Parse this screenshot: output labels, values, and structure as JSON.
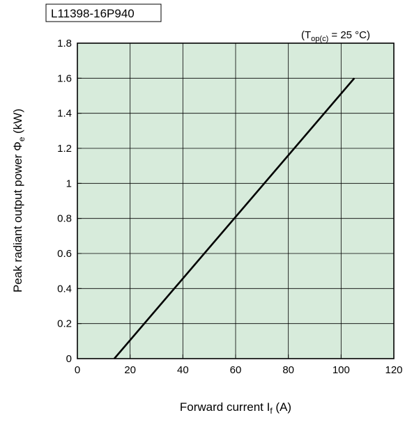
{
  "model_label": "L11398-16P940",
  "condition": {
    "prefix": "(T",
    "subscript": "op(c)",
    "suffix": " = 25 °C)"
  },
  "chart_data": {
    "type": "line",
    "xlabel": {
      "main": "Forward current I",
      "sub": "f",
      "unit": " (A)"
    },
    "ylabel": {
      "main": "Peak radiant output power Φ",
      "sub": "e",
      "unit": " (kW)"
    },
    "xlim": [
      0,
      120
    ],
    "ylim": [
      0,
      1.8
    ],
    "x_ticks": [
      0,
      20,
      40,
      60,
      80,
      100,
      120
    ],
    "y_ticks": [
      0,
      0.2,
      0.4,
      0.6,
      0.8,
      1,
      1.2,
      1.4,
      1.6,
      1.8
    ],
    "grid": true,
    "plot_background": "#d7ebdb",
    "line_color": "#000000",
    "series": [
      {
        "x": [
          14,
          105
        ],
        "y": [
          0,
          1.6
        ]
      }
    ]
  }
}
